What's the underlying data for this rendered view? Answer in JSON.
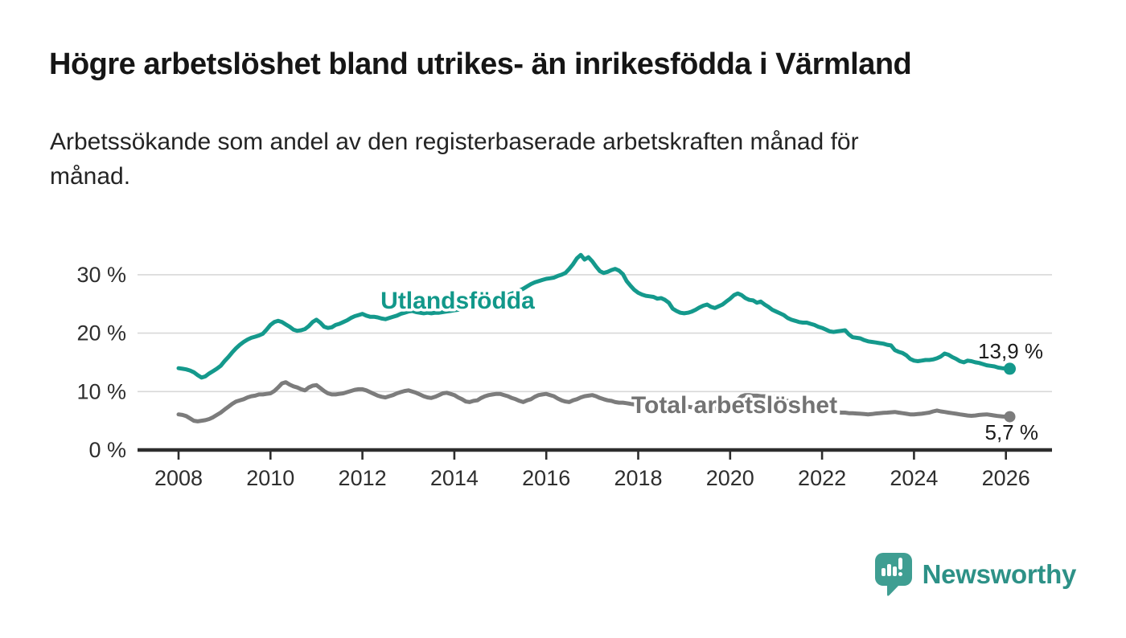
{
  "title": "Högre arbetslöshet bland utrikes- än inrikesfödda i Värmland",
  "subtitle_lines": [
    "Arbetssökande som andel av den registerbaserade arbetskraften månad för",
    "månad."
  ],
  "branding": {
    "name": "Newsworthy",
    "icon": "newsworthy-speech-bubble-bar-chart-icon"
  },
  "colors": {
    "accent_teal": "#14998c",
    "series_gray": "#7c7c7c",
    "grid": "#d8d8d8",
    "axis": "#2d2d2d",
    "logo_bubble": "#3f9e92",
    "wordmark": "#2d9187"
  },
  "chart_data": {
    "type": "line",
    "x_start_year": 2008,
    "x_start_month": 1,
    "x_step_months": 1,
    "x_ticks": [
      2008,
      2010,
      2012,
      2014,
      2016,
      2018,
      2020,
      2022,
      2024,
      2026
    ],
    "y_ticks": [
      {
        "value": 0,
        "label": "0 %"
      },
      {
        "value": 10,
        "label": "10 %"
      },
      {
        "value": 20,
        "label": "20 %"
      },
      {
        "value": 30,
        "label": "30 %"
      }
    ],
    "ylim": [
      0,
      34
    ],
    "grid": "horizontal",
    "legend_position": "inline-labels",
    "series": [
      {
        "name": "Utlandsfödda",
        "color": "#14998c",
        "label_color": "#12988a",
        "end_label": "13,9 %",
        "end_value": 13.9,
        "values": [
          14.0,
          13.9,
          13.8,
          13.6,
          13.3,
          12.8,
          12.4,
          12.6,
          13.1,
          13.5,
          13.9,
          14.4,
          15.2,
          15.9,
          16.7,
          17.4,
          18.0,
          18.5,
          18.9,
          19.2,
          19.4,
          19.6,
          19.9,
          20.6,
          21.4,
          21.9,
          22.1,
          21.9,
          21.5,
          21.1,
          20.6,
          20.4,
          20.5,
          20.7,
          21.2,
          21.9,
          22.3,
          21.8,
          21.1,
          20.9,
          21.0,
          21.4,
          21.6,
          21.9,
          22.2,
          22.6,
          22.9,
          23.1,
          23.3,
          23.0,
          22.8,
          22.8,
          22.7,
          22.5,
          22.4,
          22.6,
          22.8,
          23.0,
          23.3,
          23.5,
          23.7,
          23.8,
          23.6,
          23.5,
          23.4,
          23.5,
          23.4,
          23.5,
          23.5,
          23.6,
          23.7,
          23.8,
          23.9,
          24.0,
          24.2,
          24.3,
          24.4,
          24.6,
          24.8,
          25.0,
          25.2,
          25.3,
          25.5,
          25.8,
          26.0,
          26.2,
          26.5,
          26.8,
          27.0,
          27.3,
          27.6,
          28.0,
          28.4,
          28.7,
          28.9,
          29.1,
          29.3,
          29.4,
          29.5,
          29.8,
          30.0,
          30.3,
          31.0,
          31.8,
          32.8,
          33.4,
          32.6,
          33.0,
          32.3,
          31.4,
          30.6,
          30.3,
          30.5,
          30.8,
          31.0,
          30.7,
          30.1,
          28.9,
          28.1,
          27.4,
          26.9,
          26.6,
          26.4,
          26.3,
          26.2,
          25.9,
          26.0,
          25.7,
          25.2,
          24.2,
          23.8,
          23.5,
          23.4,
          23.5,
          23.7,
          24.0,
          24.4,
          24.7,
          24.9,
          24.5,
          24.3,
          24.6,
          24.9,
          25.4,
          25.9,
          26.5,
          26.8,
          26.5,
          26.0,
          25.7,
          25.6,
          25.2,
          25.4,
          24.9,
          24.5,
          24.0,
          23.7,
          23.4,
          23.1,
          22.6,
          22.3,
          22.1,
          21.9,
          21.8,
          21.8,
          21.6,
          21.4,
          21.1,
          20.9,
          20.6,
          20.3,
          20.2,
          20.3,
          20.4,
          20.5,
          19.8,
          19.3,
          19.2,
          19.1,
          18.8,
          18.6,
          18.5,
          18.4,
          18.3,
          18.2,
          18.0,
          17.9,
          17.1,
          16.8,
          16.6,
          16.2,
          15.6,
          15.3,
          15.2,
          15.3,
          15.4,
          15.4,
          15.5,
          15.7,
          16.0,
          16.5,
          16.3,
          15.9,
          15.6,
          15.2,
          15.0,
          15.3,
          15.2,
          15.0,
          14.9,
          14.7,
          14.5,
          14.4,
          14.3,
          14.1,
          14.0,
          13.95,
          13.9
        ]
      },
      {
        "name": "Total arbetslöshet",
        "color": "#7c7c7c",
        "label_color": "#737373",
        "end_label": "5,7 %",
        "end_value": 5.7,
        "values": [
          6.1,
          6.0,
          5.8,
          5.4,
          5.0,
          4.9,
          5.0,
          5.1,
          5.3,
          5.6,
          6.0,
          6.4,
          6.9,
          7.4,
          7.9,
          8.3,
          8.5,
          8.7,
          9.0,
          9.2,
          9.3,
          9.5,
          9.5,
          9.6,
          9.7,
          10.1,
          10.7,
          11.4,
          11.6,
          11.2,
          10.9,
          10.7,
          10.4,
          10.2,
          10.7,
          11.0,
          11.1,
          10.6,
          10.1,
          9.7,
          9.5,
          9.5,
          9.6,
          9.7,
          9.9,
          10.1,
          10.3,
          10.4,
          10.4,
          10.2,
          9.9,
          9.6,
          9.3,
          9.1,
          9.0,
          9.2,
          9.4,
          9.7,
          9.9,
          10.1,
          10.2,
          10.0,
          9.8,
          9.5,
          9.2,
          9.0,
          8.9,
          9.1,
          9.4,
          9.7,
          9.8,
          9.6,
          9.4,
          9.0,
          8.7,
          8.3,
          8.2,
          8.4,
          8.5,
          8.9,
          9.2,
          9.4,
          9.5,
          9.6,
          9.6,
          9.4,
          9.2,
          8.9,
          8.7,
          8.4,
          8.2,
          8.5,
          8.7,
          9.1,
          9.4,
          9.5,
          9.6,
          9.4,
          9.2,
          8.8,
          8.5,
          8.3,
          8.2,
          8.5,
          8.7,
          9.0,
          9.2,
          9.3,
          9.4,
          9.2,
          8.9,
          8.7,
          8.5,
          8.4,
          8.2,
          8.1,
          8.1,
          8.0,
          7.9,
          7.8,
          7.7,
          7.6,
          7.5,
          7.4,
          7.3,
          7.2,
          7.1,
          7.1,
          7.2,
          7.3,
          7.4,
          7.5,
          7.5,
          7.4,
          7.3,
          7.1,
          7.0,
          6.9,
          6.9,
          7.0,
          7.1,
          7.2,
          7.3,
          7.4,
          7.5,
          7.9,
          8.6,
          9.2,
          9.4,
          9.4,
          9.3,
          9.3,
          9.2,
          9.2,
          9.1,
          9.1,
          9.1,
          8.9,
          8.7,
          8.4,
          8.1,
          7.9,
          7.7,
          7.6,
          7.4,
          7.3,
          7.2,
          7.1,
          7.0,
          6.9,
          6.7,
          6.6,
          6.5,
          6.4,
          6.4,
          6.3,
          6.3,
          6.25,
          6.2,
          6.15,
          6.1,
          6.15,
          6.25,
          6.3,
          6.35,
          6.4,
          6.45,
          6.5,
          6.4,
          6.3,
          6.2,
          6.1,
          6.1,
          6.15,
          6.2,
          6.3,
          6.4,
          6.6,
          6.75,
          6.6,
          6.5,
          6.4,
          6.3,
          6.2,
          6.1,
          6.0,
          5.9,
          5.85,
          5.9,
          6.0,
          6.05,
          6.1,
          6.0,
          5.9,
          5.8,
          5.75,
          5.7,
          5.7
        ]
      }
    ]
  }
}
